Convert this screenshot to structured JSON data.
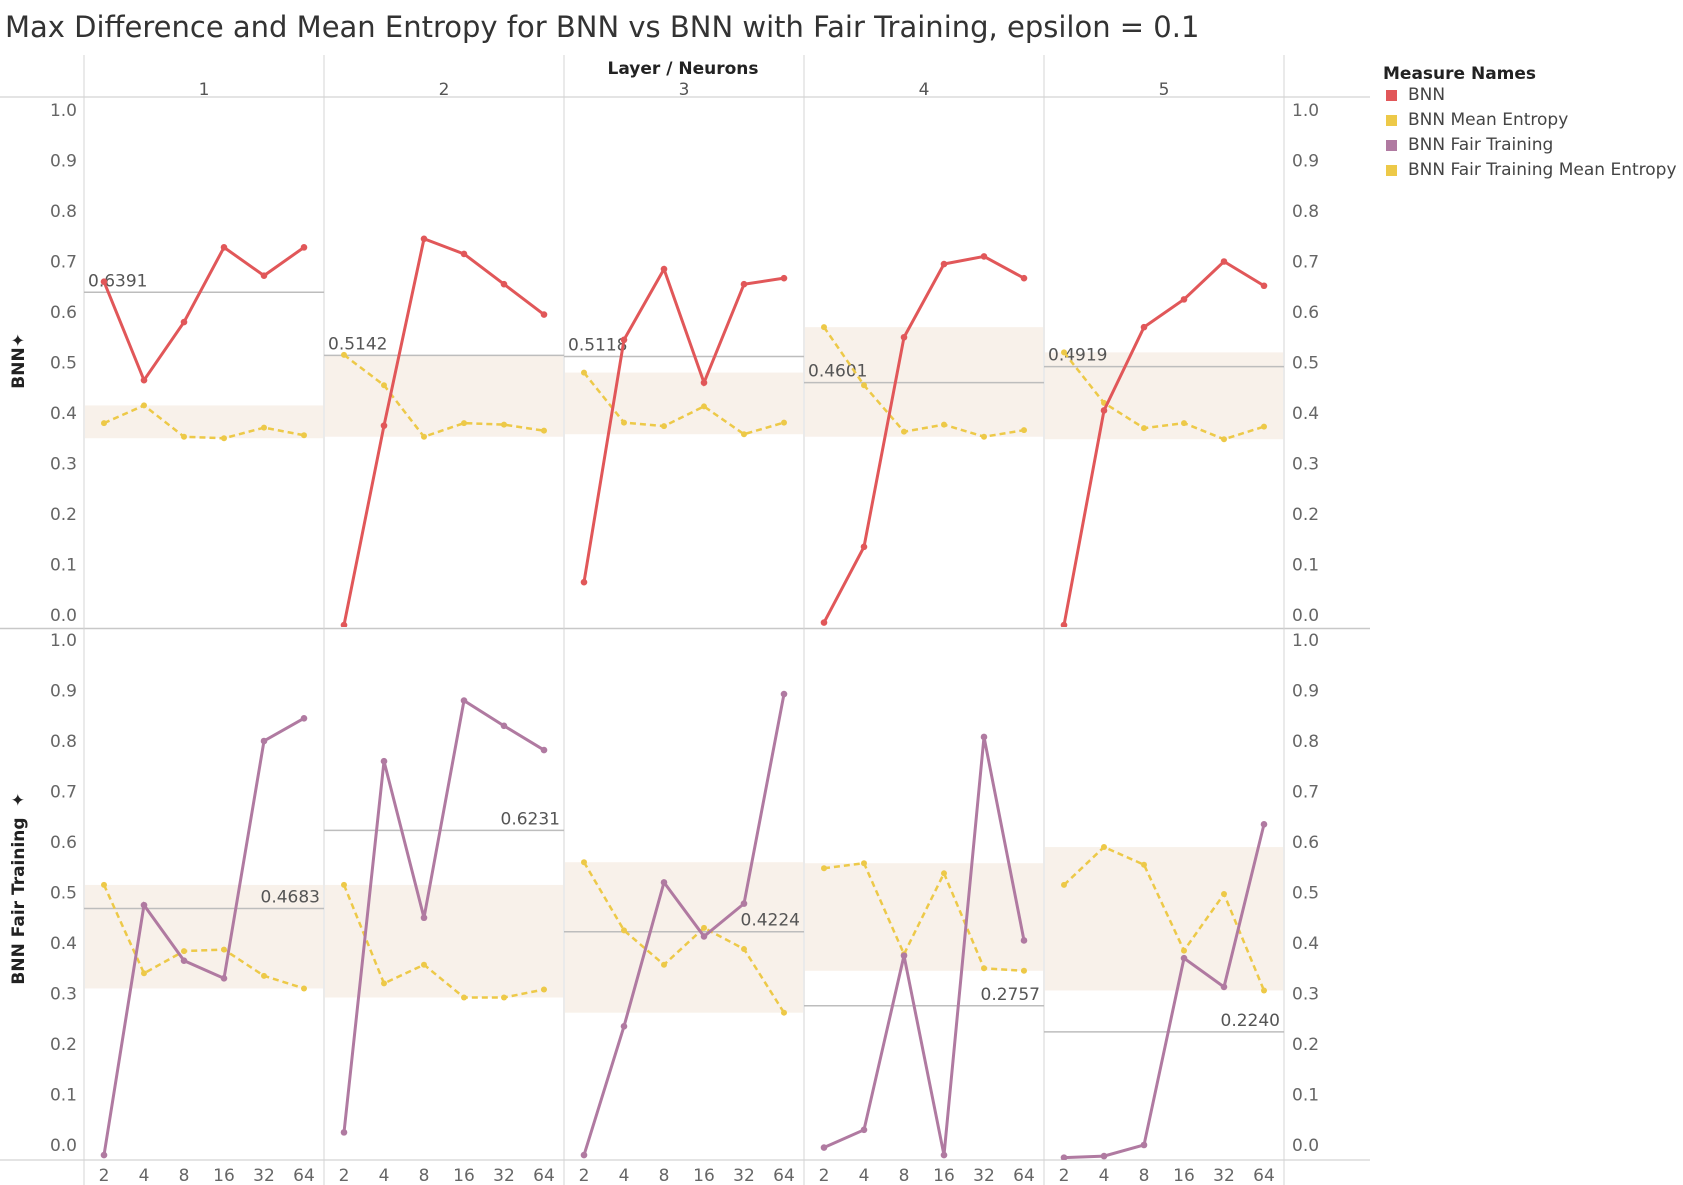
{
  "chart_data": {
    "type": "line",
    "title": "Max Difference and Mean Entropy for BNN vs BNN with Fair Training, epsilon = 0.1",
    "column_header": "Layer / Neurons",
    "columns": [
      "1",
      "2",
      "3",
      "4",
      "5"
    ],
    "x_categories": [
      "2",
      "4",
      "8",
      "16",
      "32",
      "64"
    ],
    "ylim": [
      0,
      1
    ],
    "y_ticks": [
      "0.0",
      "0.1",
      "0.2",
      "0.3",
      "0.4",
      "0.5",
      "0.6",
      "0.7",
      "0.8",
      "0.9",
      "1.0"
    ],
    "legend_title": "Measure Names",
    "legend_placement": "top-right",
    "legend": [
      {
        "name": "BNN",
        "color": "#e15759"
      },
      {
        "name": "BNN Mean Entropy",
        "color": "#edc948"
      },
      {
        "name": "BNN Fair Training",
        "color": "#b07aa1"
      },
      {
        "name": "BNN Fair Training Mean Entropy",
        "color": "#edc948"
      }
    ],
    "rows": [
      {
        "label": "BNN",
        "pin_icon": "pin-icon",
        "line_series": "BNN",
        "line_color": "#e15759",
        "entropy_series": "BNN Mean Entropy",
        "entropy_color": "#edc948",
        "panels": [
          {
            "line": [
              0.66,
              0.465,
              0.58,
              0.728,
              0.672,
              0.728
            ],
            "entropy": [
              0.38,
              0.415,
              0.353,
              0.35,
              0.371,
              0.356
            ],
            "average": 0.6391,
            "average_label": "0.6391",
            "band": [
              0.35,
              0.415
            ]
          },
          {
            "line": [
              -0.02,
              0.375,
              0.745,
              0.715,
              0.655,
              0.595
            ],
            "entropy": [
              0.515,
              0.455,
              0.353,
              0.38,
              0.377,
              0.365
            ],
            "average": 0.5142,
            "average_label": "0.5142",
            "band": [
              0.353,
              0.515
            ]
          },
          {
            "line": [
              0.065,
              0.545,
              0.685,
              0.46,
              0.655,
              0.667
            ],
            "entropy": [
              0.48,
              0.381,
              0.374,
              0.413,
              0.358,
              0.381
            ],
            "average": 0.5118,
            "average_label": "0.5118",
            "band": [
              0.358,
              0.48
            ]
          },
          {
            "line": [
              -0.015,
              0.135,
              0.55,
              0.695,
              0.71,
              0.667
            ],
            "entropy": [
              0.57,
              0.455,
              0.363,
              0.377,
              0.353,
              0.366
            ],
            "average": 0.4601,
            "average_label": "0.4601",
            "band": [
              0.353,
              0.57
            ]
          },
          {
            "line": [
              -0.02,
              0.405,
              0.57,
              0.625,
              0.7,
              0.652
            ],
            "entropy": [
              0.52,
              0.42,
              0.37,
              0.38,
              0.348,
              0.373
            ],
            "average": 0.4919,
            "average_label": "0.4919",
            "band": [
              0.348,
              0.52
            ]
          }
        ]
      },
      {
        "label": "BNN Fair Training",
        "pin_icon": "pin-icon",
        "line_series": "BNN Fair Training",
        "line_color": "#b07aa1",
        "entropy_series": "BNN Fair Training Mean Entropy",
        "entropy_color": "#edc948",
        "panels": [
          {
            "line": [
              -0.02,
              0.475,
              0.365,
              0.33,
              0.8,
              0.845
            ],
            "entropy": [
              0.515,
              0.34,
              0.384,
              0.387,
              0.335,
              0.31
            ],
            "average": 0.4683,
            "average_label": "0.4683",
            "band": [
              0.31,
              0.515
            ]
          },
          {
            "line": [
              0.025,
              0.76,
              0.45,
              0.88,
              0.83,
              0.782
            ],
            "entropy": [
              0.515,
              0.32,
              0.357,
              0.292,
              0.292,
              0.308
            ],
            "average": 0.6231,
            "average_label": "0.6231",
            "band": [
              0.292,
              0.515
            ]
          },
          {
            "line": [
              -0.02,
              0.235,
              0.52,
              0.413,
              0.478,
              0.893
            ],
            "entropy": [
              0.56,
              0.425,
              0.357,
              0.43,
              0.388,
              0.262
            ],
            "average": 0.4224,
            "average_label": "0.4224",
            "band": [
              0.262,
              0.56
            ]
          },
          {
            "line": [
              -0.005,
              0.03,
              0.375,
              -0.02,
              0.808,
              0.405
            ],
            "entropy": [
              0.548,
              0.558,
              0.378,
              0.538,
              0.35,
              0.345
            ],
            "average": 0.2757,
            "average_label": "0.2757",
            "band": [
              0.345,
              0.558
            ]
          },
          {
            "line": [
              -0.025,
              -0.022,
              0.0,
              0.37,
              0.313,
              0.635
            ],
            "entropy": [
              0.515,
              0.59,
              0.555,
              0.385,
              0.497,
              0.306
            ],
            "average": 0.224,
            "average_label": "0.2240",
            "band": [
              0.306,
              0.59
            ]
          }
        ]
      }
    ]
  }
}
